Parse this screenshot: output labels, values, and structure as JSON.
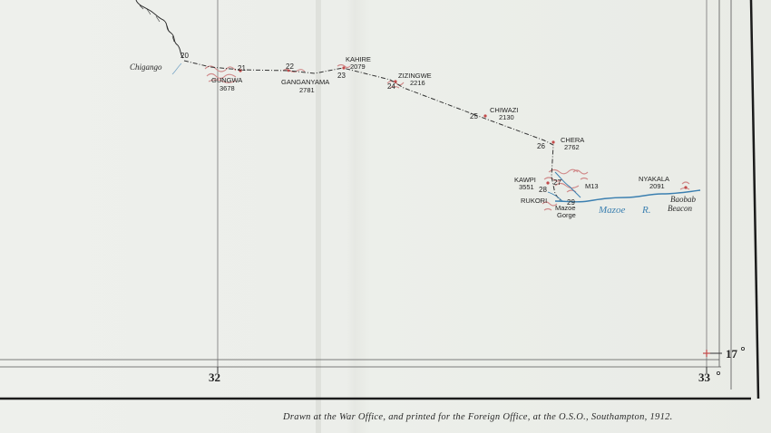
{
  "boundary_points": {
    "p20": "20",
    "p21": "21",
    "p22": "22",
    "p23": "23",
    "p24": "24",
    "p25": "25",
    "p26": "26",
    "p27": "27",
    "p28": "28",
    "p29": "29"
  },
  "places": {
    "chigango": "Chigango",
    "gungwa": {
      "name": "GUNGWA",
      "height": "3678"
    },
    "ganganyama": {
      "name": "GANGANYAMA",
      "height": "2781"
    },
    "kahire": {
      "name": "KAHIRE",
      "height": "2079"
    },
    "zizingwe": {
      "name": "ZIZINGWE",
      "height": "2216"
    },
    "chiwazi": {
      "name": "CHIWAZI",
      "height": "2130"
    },
    "chera": {
      "name": "CHERA",
      "height": "2762"
    },
    "kawpi": {
      "name": "KAWPI",
      "height": "3551"
    },
    "rukori": "RUKORI",
    "mazoe_gorge": [
      "Mazoe",
      "Gorge"
    ],
    "m13": "M13",
    "nyakala": {
      "name": "NYAKALA",
      "height": "2091"
    },
    "baobab_beacon": [
      "Baobab",
      "Beacon"
    ]
  },
  "river": {
    "name": "Mazoe",
    "suffix": "R."
  },
  "coordinates": {
    "lon_32": "32",
    "lon_33": "33",
    "lat_17": "17"
  },
  "credit": "Drawn at the War Office, and printed for the Foreign Office, at the O.S.O., Southampton, 1912.",
  "colors": {
    "boundary": "#333333",
    "relief": "#d08a8a",
    "river": "#3b7fb0",
    "border": "#1b1b1b"
  }
}
